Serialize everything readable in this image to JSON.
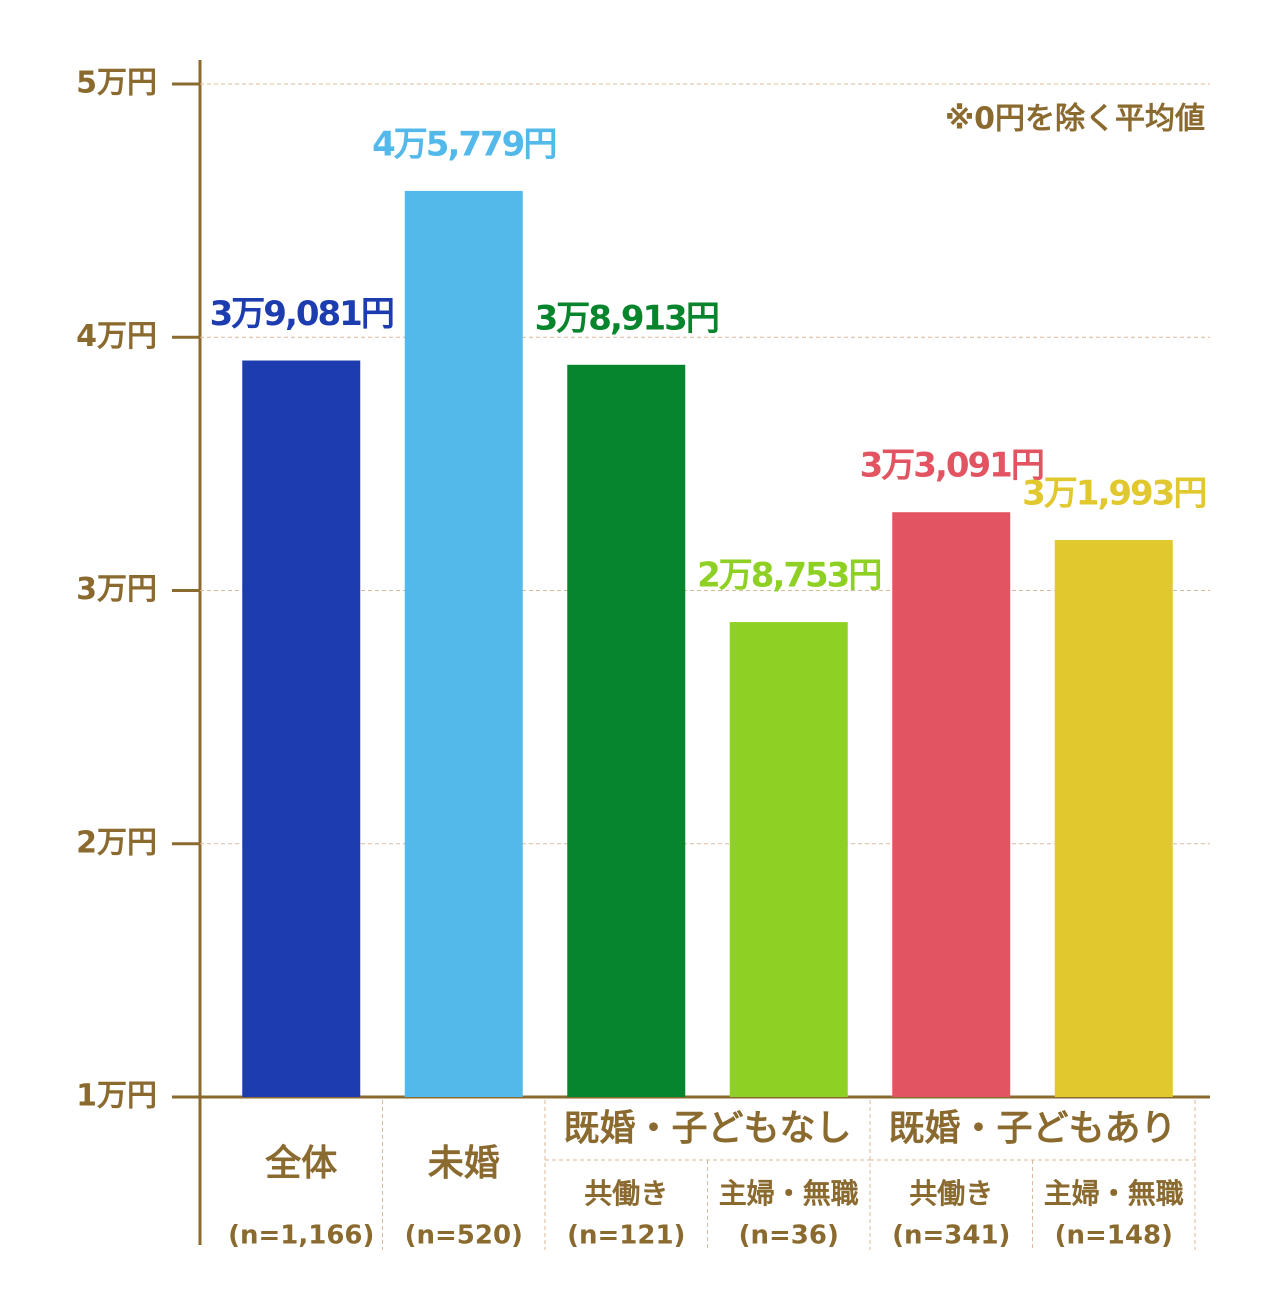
{
  "chart_data": {
    "type": "bar",
    "annotation": "※0円を除く平均値",
    "categories": [
      "全体",
      "未婚",
      "共働き",
      "主婦・無職",
      "共働き",
      "主婦・無職"
    ],
    "group_labels": [
      null,
      null,
      "既婚・子どもなし",
      null,
      "既婚・子どもあり",
      null
    ],
    "sample_sizes": [
      "(n=1,166)",
      "(n=520)",
      "(n=121)",
      "(n=36)",
      "(n=341)",
      "(n=148)"
    ],
    "values": [
      39081,
      45779,
      38913,
      28753,
      33091,
      31993
    ],
    "value_labels": [
      "3万9,081円",
      "4万5,779円",
      "3万8,913円",
      "2万8,753円",
      "3万3,091円",
      "3万1,993円"
    ],
    "colors": [
      "#1c3caf",
      "#52b9ea",
      "#07852d",
      "#8fd024",
      "#e35462",
      "#e2c82f"
    ],
    "ylim": [
      10000,
      50000
    ],
    "yticks": [
      {
        "value": 10000,
        "label": "1万円"
      },
      {
        "value": 20000,
        "label": "2万円"
      },
      {
        "value": 30000,
        "label": "3万円"
      },
      {
        "value": 40000,
        "label": "4万円"
      },
      {
        "value": 50000,
        "label": "5万円"
      }
    ],
    "grid": true
  }
}
